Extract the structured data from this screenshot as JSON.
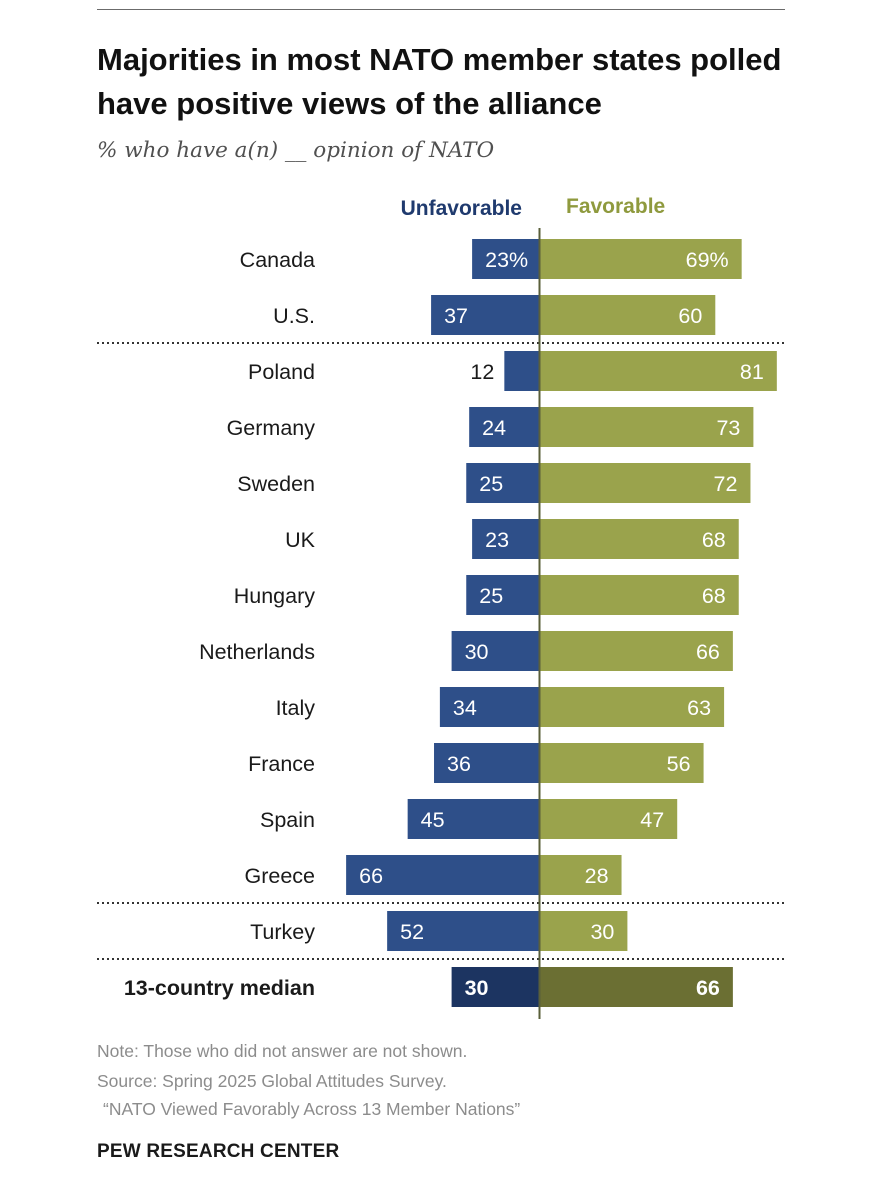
{
  "title": "Majorities in most NATO member states polled have positive views of the alliance",
  "subtitle": "% who have a(n) __ opinion of NATO",
  "colors": {
    "unfavorable": "#2e4f89",
    "favorable": "#9aa34c",
    "median_unfavorable": "#1c3461",
    "median_favorable": "#6b6f33",
    "unfavorable_label": "#1f3a6e",
    "favorable_label": "#8f9a3e"
  },
  "chart_data": {
    "type": "bar",
    "orientation": "horizontal-diverging",
    "title": "Majorities in most NATO member states polled have positive views of the alliance",
    "subtitle": "% who have a(n) __ opinion of NATO",
    "categories": [
      "Canada",
      "U.S.",
      "Poland",
      "Germany",
      "Sweden",
      "UK",
      "Hungary",
      "Netherlands",
      "Italy",
      "France",
      "Spain",
      "Greece",
      "Turkey",
      "13-country median"
    ],
    "series": [
      {
        "name": "Unfavorable",
        "values": [
          23,
          37,
          12,
          24,
          25,
          23,
          25,
          30,
          34,
          36,
          45,
          66,
          52,
          30
        ]
      },
      {
        "name": "Favorable",
        "values": [
          69,
          60,
          81,
          73,
          72,
          68,
          68,
          66,
          63,
          56,
          47,
          28,
          30,
          66
        ]
      }
    ],
    "value_labels": {
      "Unfavorable": [
        "23%",
        "37",
        "12",
        "24",
        "25",
        "23",
        "25",
        "30",
        "34",
        "36",
        "45",
        "66",
        "52",
        "30"
      ],
      "Favorable": [
        "69%",
        "60",
        "81",
        "73",
        "72",
        "68",
        "68",
        "66",
        "63",
        "56",
        "47",
        "28",
        "30",
        "66"
      ]
    },
    "group_separators_after": [
      "U.S.",
      "Greece",
      "Turkey"
    ],
    "highlight_row": "13-country median",
    "xlim": [
      -66,
      81
    ],
    "legend": [
      "Unfavorable",
      "Favorable"
    ]
  },
  "footer": {
    "note": "Note: Those who did not answer are not shown.",
    "source": "Source: Spring 2025 Global Attitudes Survey.",
    "report": "“NATO Viewed Favorably Across 13 Member Nations”",
    "brand": "PEW RESEARCH CENTER"
  }
}
